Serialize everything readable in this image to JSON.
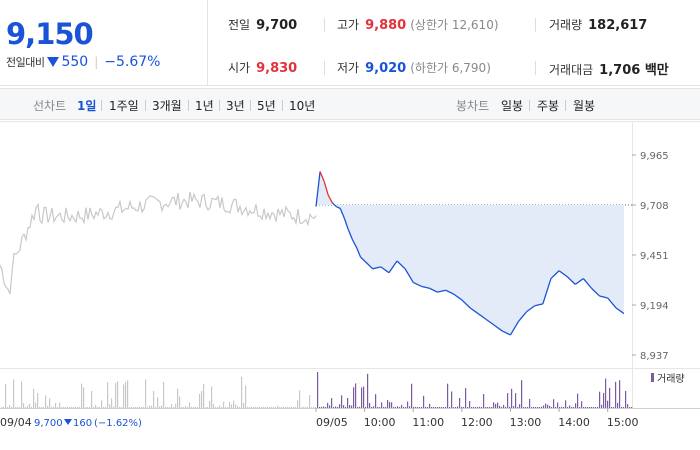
{
  "price": {
    "current": "9,150",
    "change_label": "전일대비",
    "change_value": "550",
    "change_pct": "−5.67%"
  },
  "stats": {
    "prev_close": {
      "label": "전일",
      "value": "9,700"
    },
    "open": {
      "label": "시가",
      "value": "9,830"
    },
    "high": {
      "label": "고가",
      "value": "9,880",
      "limit": "(상한가 12,610)"
    },
    "low": {
      "label": "저가",
      "value": "9,020",
      "limit": "(하한가 6,790)"
    },
    "volume": {
      "label": "거래량",
      "value": "182,617"
    },
    "amount": {
      "label": "거래대금",
      "value": "1,706 백만"
    }
  },
  "period_bar": {
    "line_label": "선차트",
    "line_periods": [
      "1일",
      "1주일",
      "3개월",
      "1년",
      "3년",
      "5년",
      "10년"
    ],
    "active_period": "1일",
    "candle_label": "봉차트",
    "candle_periods": [
      "일봉",
      "주봉",
      "월봉"
    ]
  },
  "colors": {
    "up": "#e2323b",
    "down": "#1a53d6",
    "prev_day_line": "#c8c8c8",
    "fill": "#e3ebf8",
    "volume": "#7a5b9e"
  },
  "chart_data": {
    "type": "line",
    "y_ticks": [
      "9,965",
      "9,708",
      "9,451",
      "9,194",
      "8,937"
    ],
    "ylim": [
      8937,
      9965
    ],
    "reference_line": 9708,
    "x_ticks": [
      "09/05",
      "10:00",
      "11:00",
      "12:00",
      "13:00",
      "14:00",
      "15:00"
    ],
    "volume_legend": "거래량",
    "previous_day": {
      "date": "09/04",
      "close": "9,700",
      "change": "160",
      "change_pct": "(−1.62%)"
    },
    "series": [
      {
        "x": [
          "09:00",
          "09:05",
          "09:10",
          "09:15",
          "09:20",
          "09:25",
          "09:30",
          "09:35",
          "09:40",
          "09:45",
          "09:50",
          "09:55",
          "10:00",
          "10:10",
          "10:20",
          "10:30",
          "10:40",
          "10:50",
          "11:00",
          "11:10",
          "11:20",
          "11:30",
          "11:40",
          "11:50",
          "12:00",
          "12:10",
          "12:20",
          "12:30",
          "12:40",
          "12:50",
          "13:00",
          "13:10",
          "13:20",
          "13:30",
          "13:40",
          "13:50",
          "14:00",
          "14:10",
          "14:20",
          "14:30",
          "14:40",
          "14:50",
          "15:00",
          "15:10",
          "15:20"
        ],
        "values": [
          9700,
          9880,
          9830,
          9760,
          9720,
          9700,
          9690,
          9640,
          9580,
          9530,
          9490,
          9440,
          9420,
          9380,
          9390,
          9360,
          9420,
          9380,
          9310,
          9290,
          9280,
          9260,
          9270,
          9250,
          9220,
          9180,
          9150,
          9120,
          9090,
          9060,
          9040,
          9110,
          9160,
          9190,
          9200,
          9330,
          9370,
          9340,
          9300,
          9330,
          9280,
          9240,
          9230,
          9180,
          9150
        ]
      }
    ]
  }
}
